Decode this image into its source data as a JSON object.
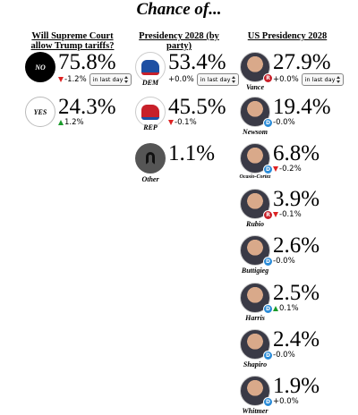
{
  "title": "Chance of...",
  "columns": [
    {
      "header": [
        "Will Supreme Court",
        "allow Trump tariffs?"
      ],
      "items": [
        {
          "label": "NO",
          "value": "75.8%",
          "change": "-1.2%",
          "direction": "down",
          "period": "in last day",
          "icon": "no"
        },
        {
          "label": "YES",
          "value": "24.3%",
          "change": "1.2%",
          "direction": "up",
          "icon": "yes"
        }
      ]
    },
    {
      "header": [
        "Presidency 2028 (by party)"
      ],
      "items": [
        {
          "label": "DEM",
          "value": "53.4%",
          "change": "+0.0%",
          "period": "in last day",
          "icon": "dem"
        },
        {
          "label": "REP",
          "value": "45.5%",
          "change": "-0.1%",
          "direction": "down",
          "icon": "rep"
        },
        {
          "label": "Other",
          "value": "1.1%",
          "icon": "other"
        }
      ]
    },
    {
      "header": [
        "US Presidency 2028"
      ],
      "items": [
        {
          "label": "Vance",
          "party": "R",
          "value": "27.9%",
          "change": "+0.0%",
          "period": "in last day",
          "icon": "photo"
        },
        {
          "label": "Newsom",
          "party": "D",
          "value": "19.4%",
          "change": "-0.0%",
          "icon": "photo"
        },
        {
          "label": "Ocasio-Cortez",
          "party": "D",
          "value": "6.8%",
          "change": "-0.2%",
          "direction": "down",
          "icon": "photo"
        },
        {
          "label": "Rubio",
          "party": "R",
          "value": "3.9%",
          "change": "-0.1%",
          "direction": "down",
          "icon": "photo"
        },
        {
          "label": "Buttigieg",
          "party": "D",
          "value": "2.6%",
          "change": "-0.0%",
          "icon": "photo"
        },
        {
          "label": "Harris",
          "party": "D",
          "value": "2.5%",
          "change": "0.1%",
          "direction": "up",
          "icon": "photo"
        },
        {
          "label": "Shapiro",
          "party": "D",
          "value": "2.4%",
          "change": "-0.0%",
          "icon": "photo"
        },
        {
          "label": "Whitmer",
          "party": "D",
          "value": "1.9%",
          "change": "+0.0%",
          "icon": "photo"
        }
      ]
    }
  ]
}
